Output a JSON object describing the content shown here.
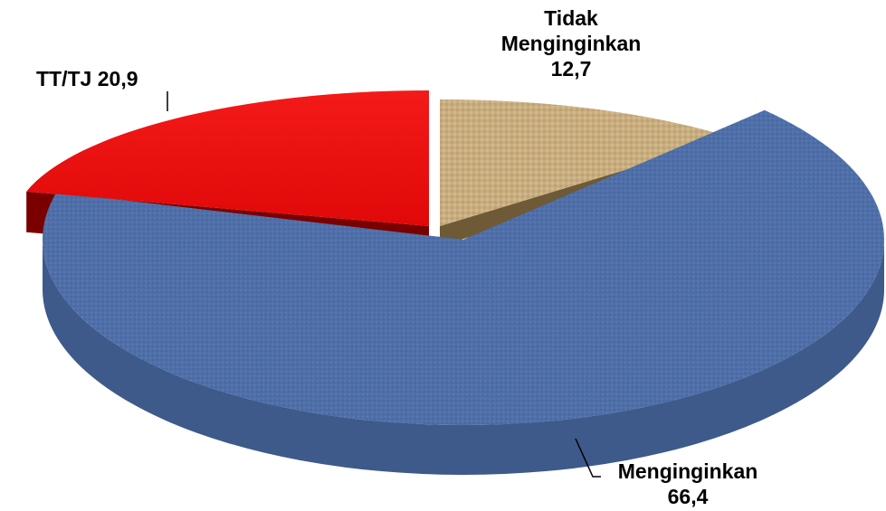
{
  "chart_data": {
    "type": "pie",
    "style": "3d-exploded",
    "labels": {
      "menginginkan": {
        "name": "Menginginkan",
        "value_text": "66,4"
      },
      "tidak": {
        "line1": "Tidak",
        "line2": "Menginginkan",
        "value_text": "12,7"
      },
      "tttj": {
        "name": "TT/TJ",
        "value_text": "20,9"
      }
    },
    "slices": [
      {
        "key": "tidak",
        "label": "Tidak Menginginkan",
        "value": 12.7,
        "color": "#C8AD7F",
        "side_color": "#6E5A36"
      },
      {
        "key": "menginginkan",
        "label": "Menginginkan",
        "value": 66.4,
        "color": "#4F6FA8",
        "side_color": "#3E5A8A"
      },
      {
        "key": "tttj",
        "label": "TT/TJ",
        "value": 20.9,
        "color": "#EE1111",
        "side_color": "#7A0000"
      }
    ],
    "legend": "none"
  }
}
